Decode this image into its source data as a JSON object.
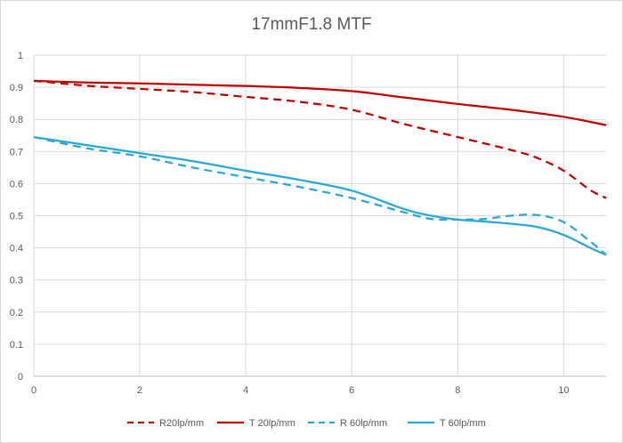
{
  "chart_data": {
    "type": "line",
    "title": "17mmF1.8  MTF",
    "xlabel": "",
    "ylabel": "",
    "xlim": [
      0,
      10.8
    ],
    "ylim": [
      0,
      1
    ],
    "x_ticks": [
      "0",
      "2",
      "4",
      "6",
      "8",
      "10"
    ],
    "y_ticks": [
      "0",
      "0.1",
      "0.2",
      "0.3",
      "0.4",
      "0.5",
      "0.6",
      "0.7",
      "0.8",
      "0.9",
      "1"
    ],
    "grid": "horizontal",
    "legend_position": "bottom",
    "series": [
      {
        "name": "R20lp/mm",
        "color": "#c00000",
        "dash": true,
        "x": [
          0,
          1,
          2,
          3,
          4,
          5,
          6,
          7,
          8,
          9,
          9.5,
          10,
          10.5,
          10.8
        ],
        "y": [
          0.92,
          0.905,
          0.895,
          0.885,
          0.87,
          0.855,
          0.83,
          0.785,
          0.745,
          0.705,
          0.68,
          0.64,
          0.58,
          0.555
        ]
      },
      {
        "name": "T 20lp/mm",
        "color": "#c00000",
        "dash": false,
        "x": [
          0,
          1,
          2,
          3,
          4,
          5,
          6,
          7,
          8,
          9,
          10,
          10.8
        ],
        "y": [
          0.92,
          0.915,
          0.912,
          0.908,
          0.904,
          0.898,
          0.888,
          0.868,
          0.848,
          0.83,
          0.808,
          0.782
        ]
      },
      {
        "name": "R 60lp/mm",
        "color": "#29a8d8",
        "dash": true,
        "x": [
          0,
          1,
          2,
          3,
          4,
          5,
          6,
          7,
          7.5,
          8,
          8.5,
          9,
          9.5,
          10,
          10.5,
          10.8
        ],
        "y": [
          0.745,
          0.71,
          0.685,
          0.65,
          0.62,
          0.59,
          0.555,
          0.51,
          0.49,
          0.488,
          0.49,
          0.5,
          0.502,
          0.48,
          0.42,
          0.378
        ]
      },
      {
        "name": "T 60lp/mm",
        "color": "#29a8d8",
        "dash": false,
        "x": [
          0,
          1,
          2,
          3,
          4,
          5,
          6,
          7,
          7.5,
          8,
          8.5,
          9,
          9.5,
          10,
          10.5,
          10.8
        ],
        "y": [
          0.745,
          0.72,
          0.695,
          0.67,
          0.64,
          0.612,
          0.578,
          0.52,
          0.5,
          0.488,
          0.482,
          0.475,
          0.465,
          0.44,
          0.4,
          0.378
        ]
      }
    ]
  }
}
